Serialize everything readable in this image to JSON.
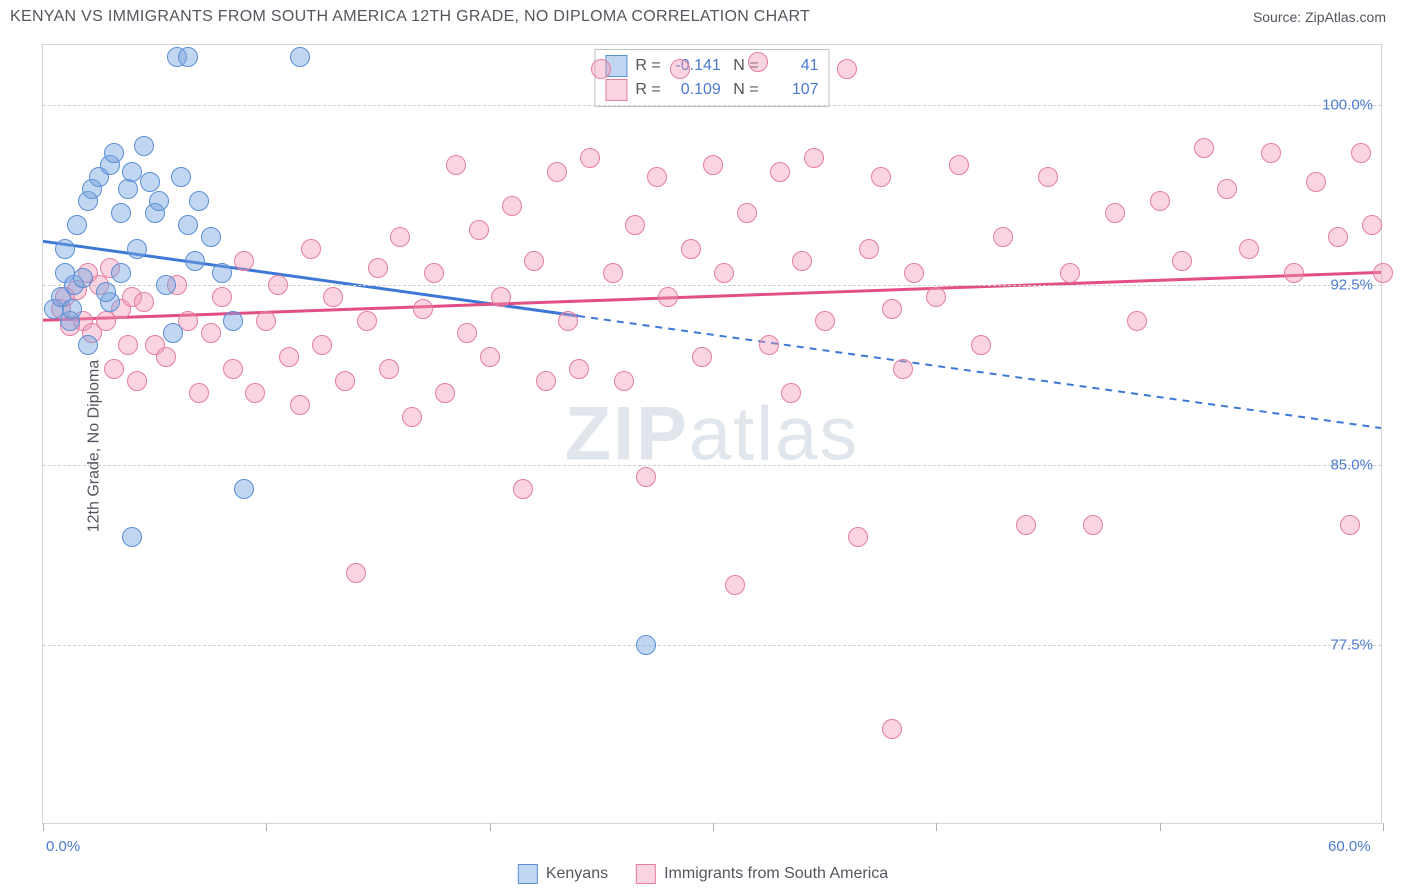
{
  "header": {
    "title": "KENYAN VS IMMIGRANTS FROM SOUTH AMERICA 12TH GRADE, NO DIPLOMA CORRELATION CHART",
    "source": "Source: ZipAtlas.com"
  },
  "chart": {
    "type": "scatter",
    "ylabel": "12th Grade, No Diploma",
    "background_color": "#ffffff",
    "grid_color": "#d0d0d0",
    "border_color": "#d6d6d6",
    "watermark_zip": "ZIP",
    "watermark_atlas": "atlas",
    "xlim": [
      0,
      60
    ],
    "ylim": [
      70,
      102.5
    ],
    "yticks": [
      77.5,
      85.0,
      92.5,
      100.0
    ],
    "ytick_labels": [
      "77.5%",
      "85.0%",
      "92.5%",
      "100.0%"
    ],
    "xticks": [
      0,
      10,
      20,
      30,
      40,
      50,
      60
    ],
    "xmin_label": "0.0%",
    "xmax_label": "60.0%",
    "dot_radius": 10,
    "series": [
      {
        "name": "Kenyans",
        "fill": "rgba(118,164,224,0.45)",
        "stroke": "#5b8fd6",
        "line_color": "#3d78d6",
        "R": "-0.141",
        "N": "41",
        "trend": {
          "x1": 0,
          "y1": 94.3,
          "x2": 60,
          "y2": 86.5,
          "solid_until_x": 24
        },
        "points": [
          [
            0.5,
            91.5
          ],
          [
            0.8,
            92.0
          ],
          [
            1.0,
            93.0
          ],
          [
            1.2,
            91.0
          ],
          [
            1.4,
            92.5
          ],
          [
            1.0,
            94.0
          ],
          [
            1.5,
            95.0
          ],
          [
            2.0,
            96.0
          ],
          [
            2.2,
            96.5
          ],
          [
            2.5,
            97.0
          ],
          [
            3.0,
            97.5
          ],
          [
            3.2,
            98.0
          ],
          [
            3.5,
            95.5
          ],
          [
            3.0,
            91.8
          ],
          [
            3.8,
            96.5
          ],
          [
            4.0,
            97.2
          ],
          [
            4.2,
            94.0
          ],
          [
            4.5,
            98.3
          ],
          [
            4.8,
            96.8
          ],
          [
            5.0,
            95.5
          ],
          [
            5.2,
            96.0
          ],
          [
            5.5,
            92.5
          ],
          [
            5.8,
            90.5
          ],
          [
            6.0,
            102.0
          ],
          [
            6.2,
            97.0
          ],
          [
            6.5,
            95.0
          ],
          [
            6.8,
            93.5
          ],
          [
            7.0,
            96.0
          ],
          [
            7.5,
            94.5
          ],
          [
            8.0,
            93.0
          ],
          [
            8.5,
            91.0
          ],
          [
            9.0,
            84.0
          ],
          [
            3.5,
            93.0
          ],
          [
            2.8,
            92.2
          ],
          [
            1.8,
            92.8
          ],
          [
            6.5,
            102.0
          ],
          [
            11.5,
            102.0
          ],
          [
            4.0,
            82.0
          ],
          [
            2.0,
            90.0
          ],
          [
            1.3,
            91.5
          ],
          [
            27.0,
            77.5
          ]
        ]
      },
      {
        "name": "Immigrants from South America",
        "fill": "rgba(242,150,180,0.40)",
        "stroke": "#e47da2",
        "line_color": "#e24e86",
        "R": "0.109",
        "N": "107",
        "trend": {
          "x1": 0,
          "y1": 91.0,
          "x2": 60,
          "y2": 93.0,
          "solid_until_x": 60
        },
        "points": [
          [
            0.8,
            91.5
          ],
          [
            1.0,
            92.0
          ],
          [
            1.2,
            90.8
          ],
          [
            1.5,
            92.3
          ],
          [
            1.8,
            91.0
          ],
          [
            2.0,
            93.0
          ],
          [
            2.2,
            90.5
          ],
          [
            2.5,
            92.5
          ],
          [
            2.8,
            91.0
          ],
          [
            3.0,
            93.2
          ],
          [
            3.2,
            89.0
          ],
          [
            3.5,
            91.5
          ],
          [
            3.8,
            90.0
          ],
          [
            4.0,
            92.0
          ],
          [
            4.2,
            88.5
          ],
          [
            4.5,
            91.8
          ],
          [
            5.0,
            90.0
          ],
          [
            5.5,
            89.5
          ],
          [
            6.0,
            92.5
          ],
          [
            6.5,
            91.0
          ],
          [
            7.0,
            88.0
          ],
          [
            7.5,
            90.5
          ],
          [
            8.0,
            92.0
          ],
          [
            8.5,
            89.0
          ],
          [
            9.0,
            93.5
          ],
          [
            9.5,
            88.0
          ],
          [
            10.0,
            91.0
          ],
          [
            10.5,
            92.5
          ],
          [
            11.0,
            89.5
          ],
          [
            11.5,
            87.5
          ],
          [
            12.0,
            94.0
          ],
          [
            12.5,
            90.0
          ],
          [
            13.0,
            92.0
          ],
          [
            13.5,
            88.5
          ],
          [
            14.0,
            80.5
          ],
          [
            14.5,
            91.0
          ],
          [
            15.0,
            93.2
          ],
          [
            15.5,
            89.0
          ],
          [
            16.0,
            94.5
          ],
          [
            16.5,
            87.0
          ],
          [
            17.0,
            91.5
          ],
          [
            17.5,
            93.0
          ],
          [
            18.0,
            88.0
          ],
          [
            18.5,
            97.5
          ],
          [
            19.0,
            90.5
          ],
          [
            19.5,
            94.8
          ],
          [
            20.0,
            89.5
          ],
          [
            20.5,
            92.0
          ],
          [
            21.0,
            95.8
          ],
          [
            21.5,
            84.0
          ],
          [
            22.0,
            93.5
          ],
          [
            22.5,
            88.5
          ],
          [
            23.0,
            97.2
          ],
          [
            23.5,
            91.0
          ],
          [
            24.0,
            89.0
          ],
          [
            24.5,
            97.8
          ],
          [
            25.0,
            101.5
          ],
          [
            25.5,
            93.0
          ],
          [
            26.0,
            88.5
          ],
          [
            26.5,
            95.0
          ],
          [
            27.0,
            84.5
          ],
          [
            27.5,
            97.0
          ],
          [
            28.0,
            92.0
          ],
          [
            28.5,
            101.5
          ],
          [
            29.0,
            94.0
          ],
          [
            29.5,
            89.5
          ],
          [
            30.0,
            97.5
          ],
          [
            30.5,
            93.0
          ],
          [
            31.0,
            80.0
          ],
          [
            31.5,
            95.5
          ],
          [
            32.0,
            101.8
          ],
          [
            32.5,
            90.0
          ],
          [
            33.0,
            97.2
          ],
          [
            33.5,
            88.0
          ],
          [
            34.0,
            93.5
          ],
          [
            34.5,
            97.8
          ],
          [
            35.0,
            91.0
          ],
          [
            36.0,
            101.5
          ],
          [
            36.5,
            82.0
          ],
          [
            37.0,
            94.0
          ],
          [
            37.5,
            97.0
          ],
          [
            38.0,
            91.5
          ],
          [
            38.5,
            89.0
          ],
          [
            39.0,
            93.0
          ],
          [
            40.0,
            92.0
          ],
          [
            41.0,
            97.5
          ],
          [
            42.0,
            90.0
          ],
          [
            43.0,
            94.5
          ],
          [
            44.0,
            82.5
          ],
          [
            45.0,
            97.0
          ],
          [
            46.0,
            93.0
          ],
          [
            47.0,
            82.5
          ],
          [
            48.0,
            95.5
          ],
          [
            49.0,
            91.0
          ],
          [
            50.0,
            96.0
          ],
          [
            51.0,
            93.5
          ],
          [
            52.0,
            98.2
          ],
          [
            53.0,
            96.5
          ],
          [
            54.0,
            94.0
          ],
          [
            38.0,
            74.0
          ],
          [
            55.0,
            98.0
          ],
          [
            56.0,
            93.0
          ],
          [
            57.0,
            96.8
          ],
          [
            58.0,
            94.5
          ],
          [
            58.5,
            82.5
          ],
          [
            59.0,
            98.0
          ],
          [
            59.5,
            95.0
          ],
          [
            60.0,
            93.0
          ]
        ]
      }
    ],
    "bottom_legend": [
      {
        "label": "Kenyans"
      },
      {
        "label": "Immigrants from South America"
      }
    ]
  }
}
